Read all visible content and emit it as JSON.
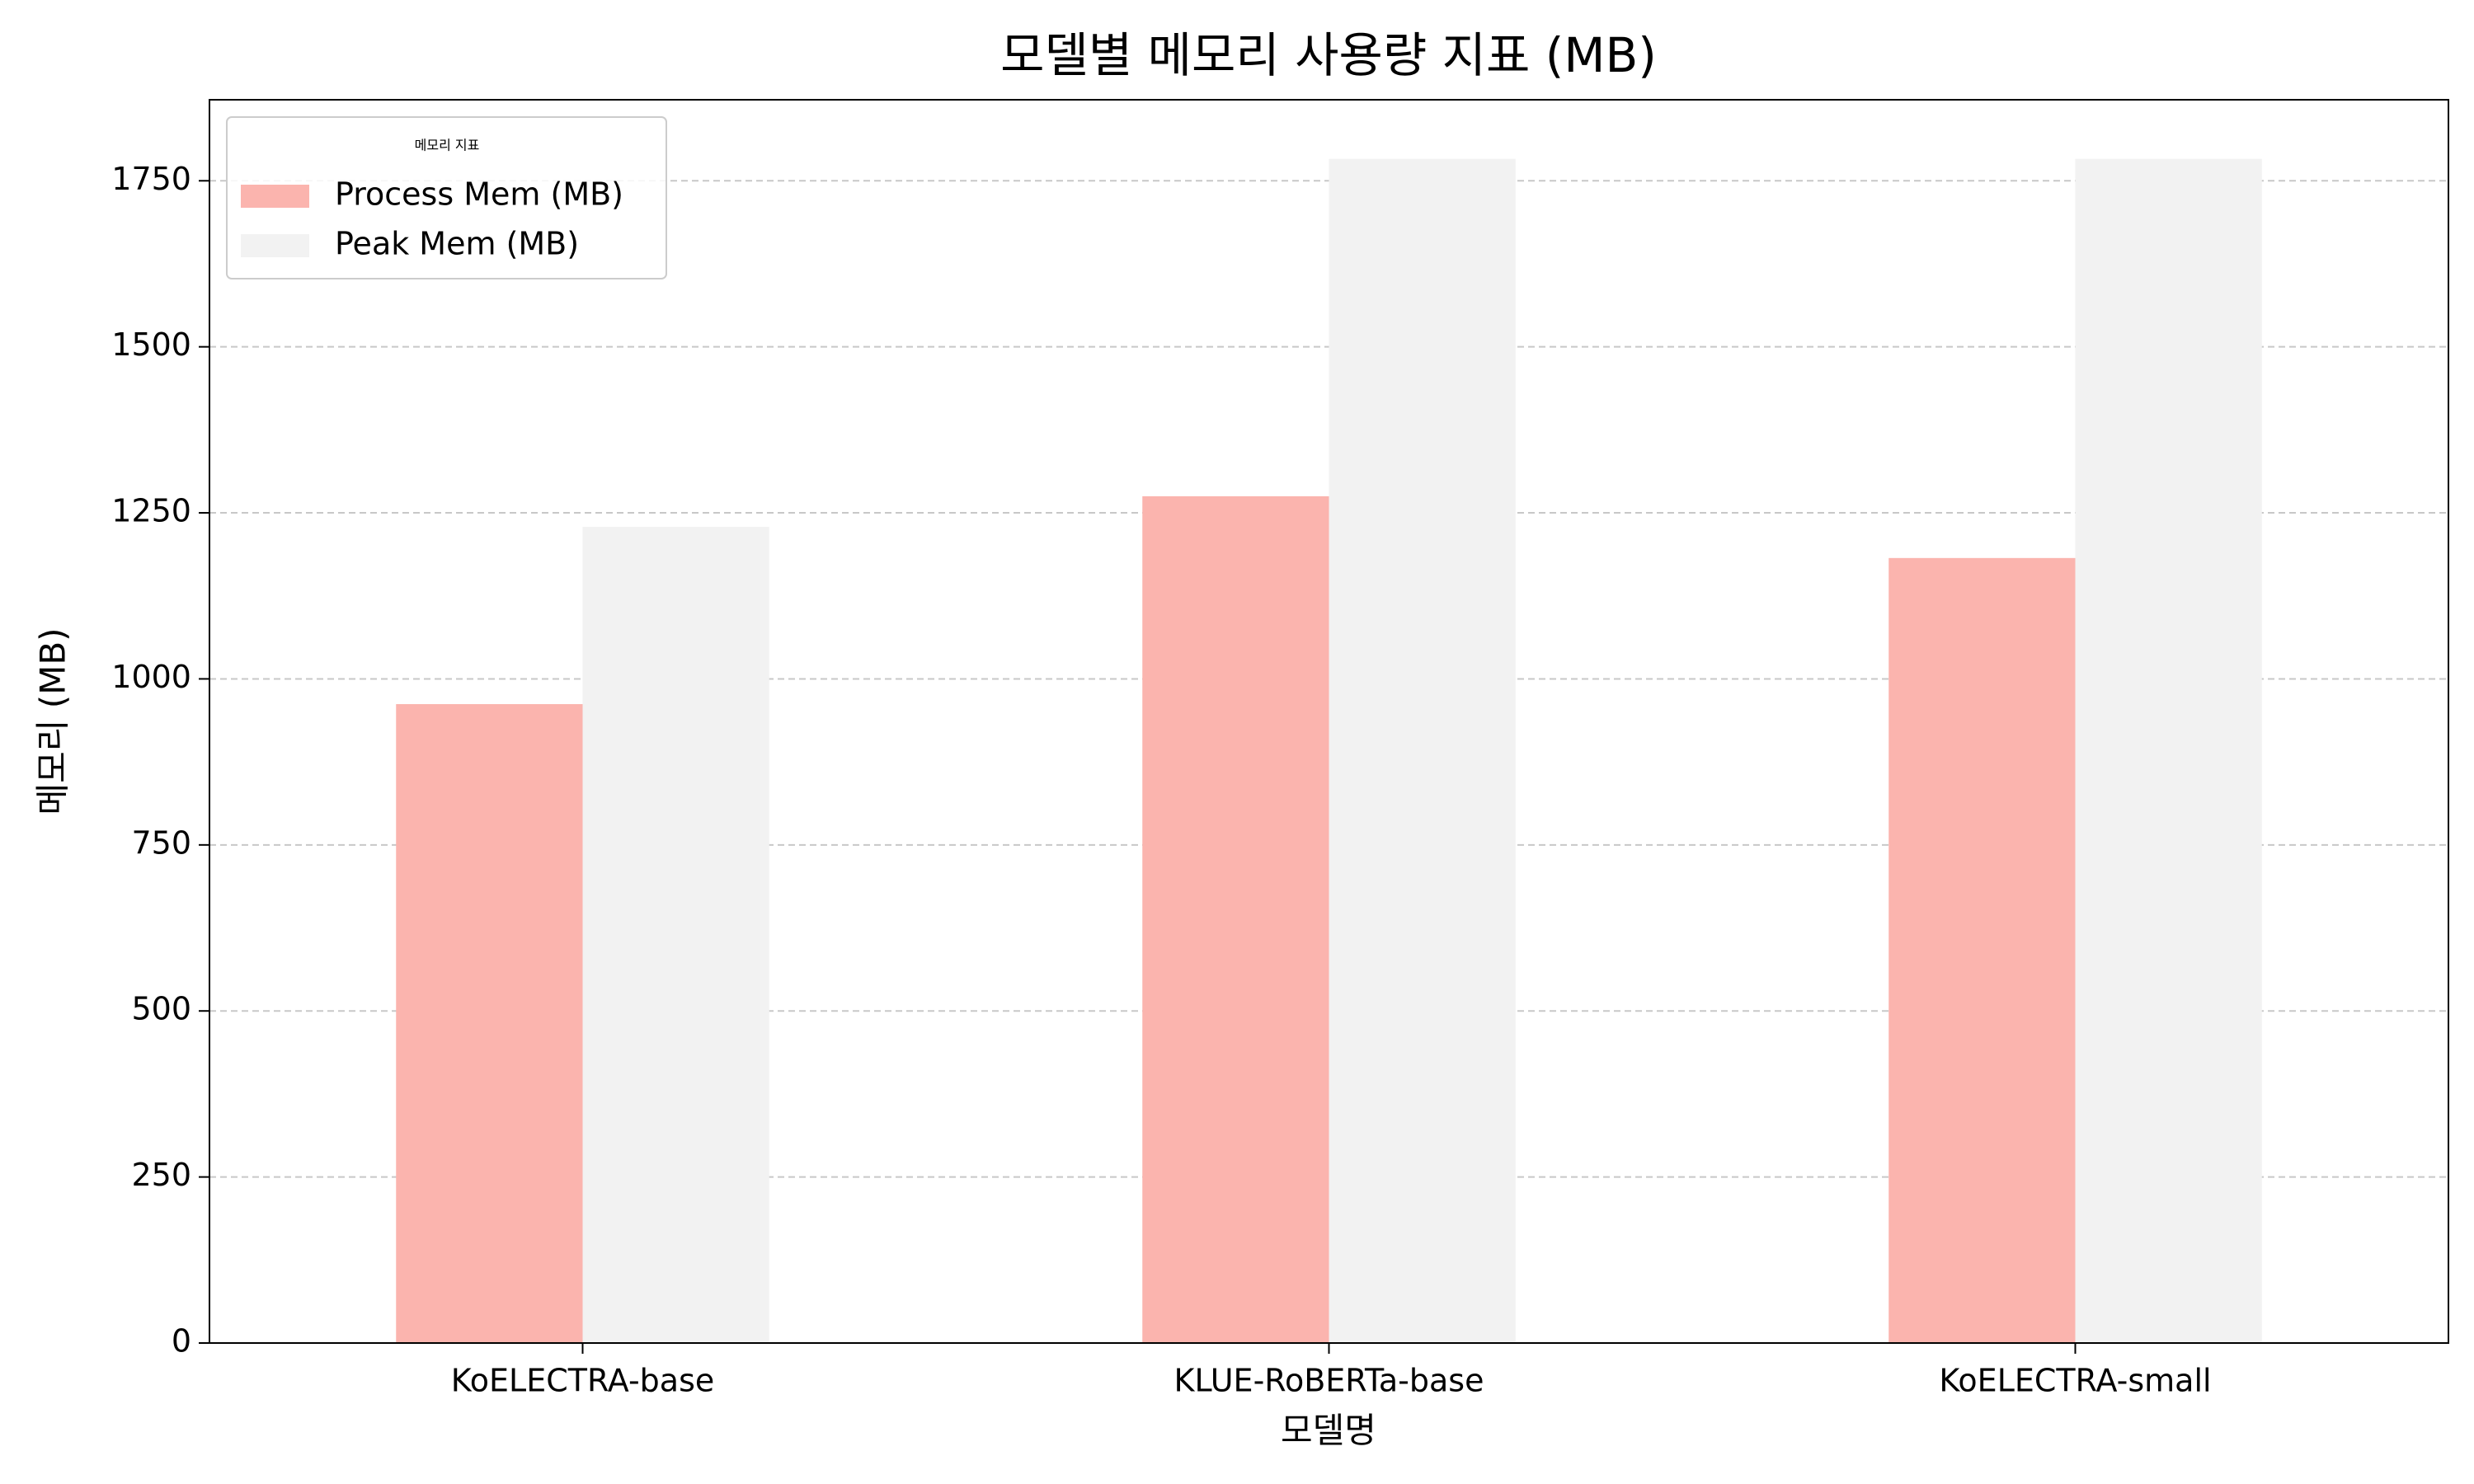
{
  "chart_data": {
    "type": "bar",
    "title": "모델별 메모리 사용량 지표 (MB)",
    "x_label": "모델명",
    "y_label": "메모리 (MB)",
    "categories": [
      "KoELECTRA-base",
      "KLUE-RoBERTa-base",
      "KoELECTRA-small"
    ],
    "series": [
      {
        "name": "Process Mem (MB)",
        "color": "#fbb4ae",
        "values": [
          962,
          1275,
          1182
        ]
      },
      {
        "name": "Peak Mem (MB)",
        "color": "#f2f2f2",
        "values": [
          1229,
          1783,
          1783
        ]
      }
    ],
    "legend_title": "메모리 지표",
    "legend_position": "upper left",
    "ylim": [
      0,
      1872
    ],
    "yticks": [
      0,
      250,
      500,
      750,
      1000,
      1250,
      1500,
      1750
    ],
    "grid": true
  }
}
